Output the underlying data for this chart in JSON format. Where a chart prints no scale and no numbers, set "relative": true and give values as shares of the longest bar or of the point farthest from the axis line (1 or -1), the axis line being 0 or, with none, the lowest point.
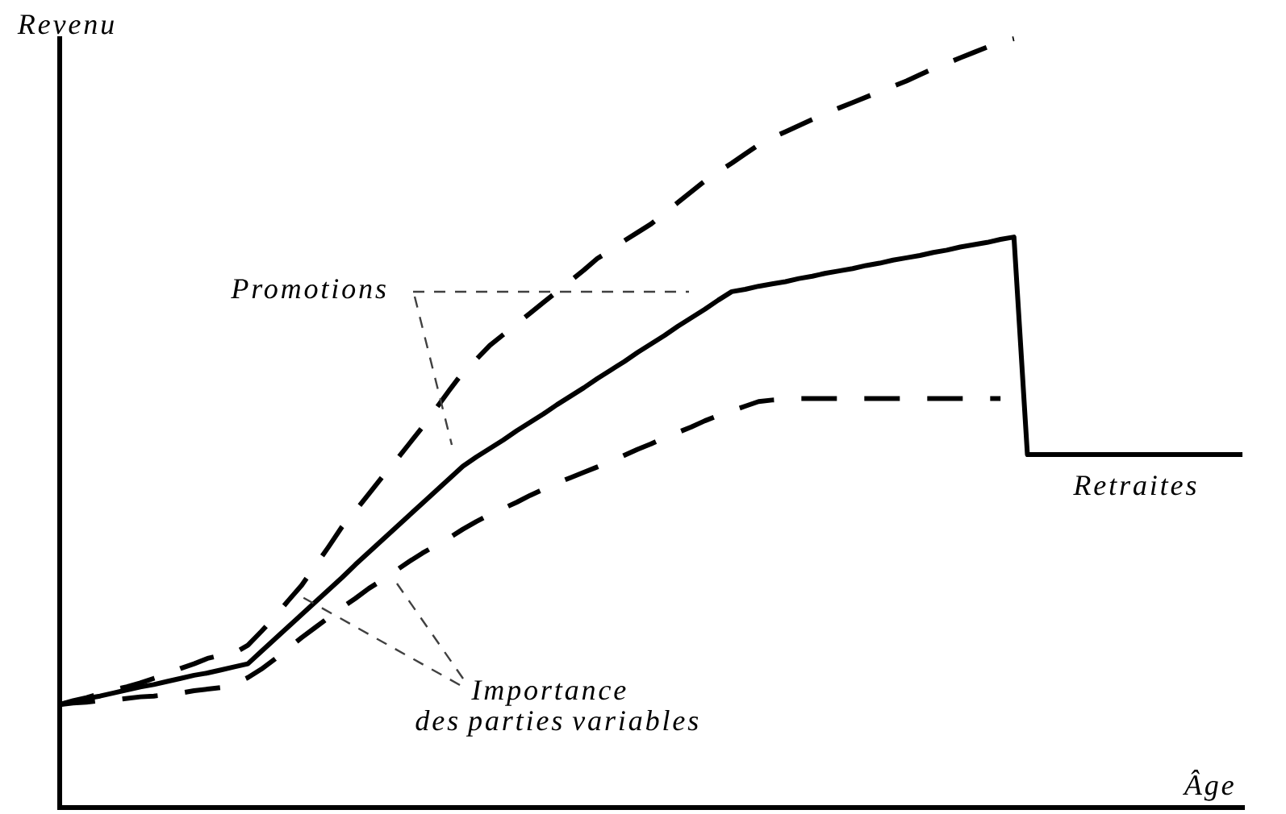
{
  "chart_data": {
    "type": "line",
    "xlabel": "Âge",
    "ylabel": "Revenu",
    "relative": true,
    "categories": [
      null,
      null,
      null,
      null,
      null,
      null,
      null,
      null,
      null,
      null,
      null,
      null,
      null,
      null,
      null,
      null,
      null,
      null,
      null,
      null,
      null,
      null,
      null,
      null,
      null,
      null,
      null,
      null,
      null,
      null,
      null,
      null,
      null,
      null,
      null,
      null,
      null,
      null,
      null,
      null,
      null,
      null,
      null,
      null,
      null,
      null,
      null,
      null,
      null,
      null,
      null,
      null,
      null,
      null,
      null,
      null,
      null,
      null,
      null,
      null,
      null,
      null,
      null,
      null,
      null,
      null,
      null,
      null,
      null,
      null,
      null,
      null,
      null,
      null,
      null,
      null,
      null,
      null,
      null,
      null,
      null,
      null,
      null,
      null,
      null,
      null,
      null,
      null,
      null
    ],
    "series": [
      {
        "color": "#000000",
        "line_style": "solid",
        "values": [
          0.134,
          0.138,
          0.142,
          0.145,
          0.149,
          0.153,
          0.157,
          0.16,
          0.164,
          0.168,
          0.172,
          0.175,
          0.179,
          0.183,
          0.187,
          0.203,
          0.219,
          0.235,
          0.251,
          0.267,
          0.283,
          0.299,
          0.316,
          0.332,
          0.348,
          0.364,
          0.38,
          0.396,
          0.412,
          0.428,
          0.444,
          0.456,
          0.467,
          0.478,
          0.49,
          0.501,
          0.512,
          0.524,
          0.535,
          0.546,
          0.558,
          0.569,
          0.58,
          0.592,
          0.603,
          0.614,
          0.626,
          0.637,
          0.648,
          0.66,
          0.671,
          0.674,
          0.678,
          0.681,
          0.684,
          0.688,
          0.691,
          0.695,
          0.698,
          0.701,
          0.705,
          0.708,
          0.712,
          0.715,
          0.718,
          0.722,
          0.725,
          0.729,
          0.732,
          0.735,
          0.739,
          0.742,
          0.459,
          0.459,
          0.459,
          0.459,
          0.459,
          0.459,
          0.459,
          0.459,
          0.459,
          0.459,
          0.459,
          0.459,
          0.459,
          0.459,
          0.459,
          0.459,
          0.459
        ]
      },
      {
        "color": "#000000",
        "line_style": "dashed",
        "values": [
          0.134,
          0.139,
          0.143,
          0.148,
          0.153,
          0.157,
          0.162,
          0.168,
          0.174,
          0.181,
          0.187,
          0.194,
          0.198,
          0.201,
          0.211,
          0.229,
          0.248,
          0.269,
          0.289,
          0.314,
          0.339,
          0.365,
          0.386,
          0.408,
          0.43,
          0.451,
          0.473,
          0.495,
          0.519,
          0.543,
          0.566,
          0.583,
          0.601,
          0.615,
          0.629,
          0.643,
          0.657,
          0.671,
          0.685,
          0.699,
          0.714,
          0.725,
          0.737,
          0.748,
          0.759,
          0.773,
          0.787,
          0.801,
          0.815,
          0.827,
          0.838,
          0.85,
          0.862,
          0.871,
          0.879,
          0.887,
          0.895,
          0.903,
          0.91,
          0.917,
          0.924,
          0.931,
          0.938,
          0.945,
          0.953,
          0.961,
          0.968,
          0.975,
          0.982,
          0.989,
          0.996,
          1.0,
          null,
          null,
          null,
          null,
          null,
          null,
          null,
          null,
          null,
          null,
          null,
          null,
          null,
          null,
          null,
          null,
          null
        ]
      },
      {
        "color": "#000000",
        "line_style": "dashed",
        "values": [
          0.134,
          0.136,
          0.137,
          0.139,
          0.14,
          0.142,
          0.144,
          0.145,
          0.147,
          0.149,
          0.152,
          0.154,
          0.156,
          0.161,
          0.169,
          0.18,
          0.193,
          0.207,
          0.221,
          0.234,
          0.247,
          0.26,
          0.272,
          0.285,
          0.296,
          0.308,
          0.32,
          0.331,
          0.341,
          0.351,
          0.362,
          0.372,
          0.381,
          0.389,
          0.397,
          0.406,
          0.414,
          0.422,
          0.429,
          0.436,
          0.443,
          0.45,
          0.458,
          0.466,
          0.473,
          0.481,
          0.488,
          0.495,
          0.503,
          0.51,
          0.516,
          0.522,
          0.528,
          0.53,
          0.531,
          0.532,
          0.532,
          0.532,
          0.532,
          0.532,
          0.532,
          0.532,
          0.532,
          0.532,
          0.532,
          0.532,
          0.532,
          0.532,
          0.532,
          0.532,
          0.532,
          null,
          null,
          null,
          null,
          null,
          null,
          null,
          null,
          null,
          null,
          null,
          null,
          null,
          null,
          null,
          null,
          null,
          null
        ]
      }
    ],
    "annotations": [
      "Promotions",
      "Importance",
      "des parties variables",
      "Retraites"
    ]
  }
}
